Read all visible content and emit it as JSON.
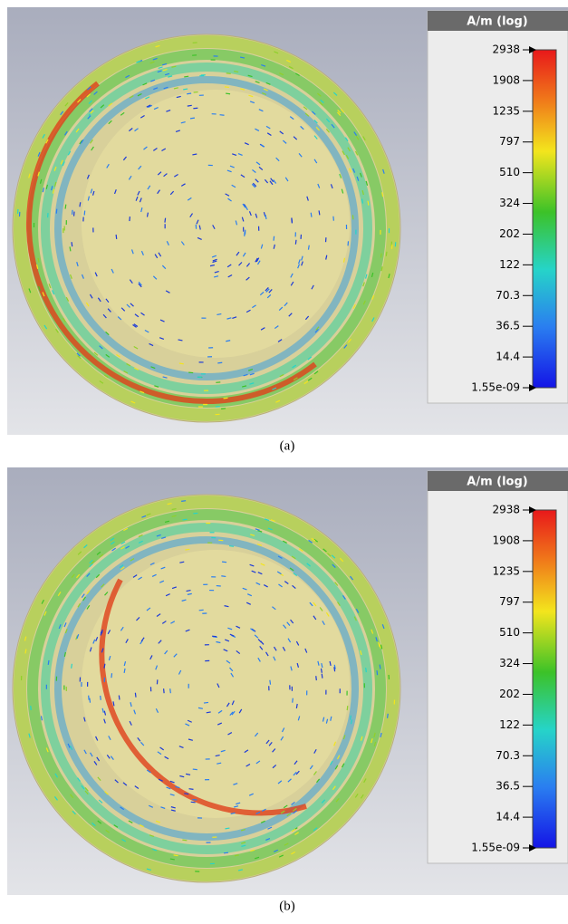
{
  "panels": [
    {
      "legend": {
        "title": "A/m (log)",
        "ticks": [
          "2938",
          "1908",
          "1235",
          "797",
          "510",
          "324",
          "202",
          "122",
          "70.3",
          "36.5",
          "14.4",
          "1.55e-09"
        ]
      },
      "caption": "(a)"
    },
    {
      "legend": {
        "title": "A/m (log)",
        "ticks": [
          "2938",
          "1908",
          "1235",
          "797",
          "510",
          "324",
          "202",
          "122",
          "70.3",
          "36.5",
          "14.4",
          "1.55e-09"
        ]
      },
      "caption": "(b)"
    }
  ]
}
